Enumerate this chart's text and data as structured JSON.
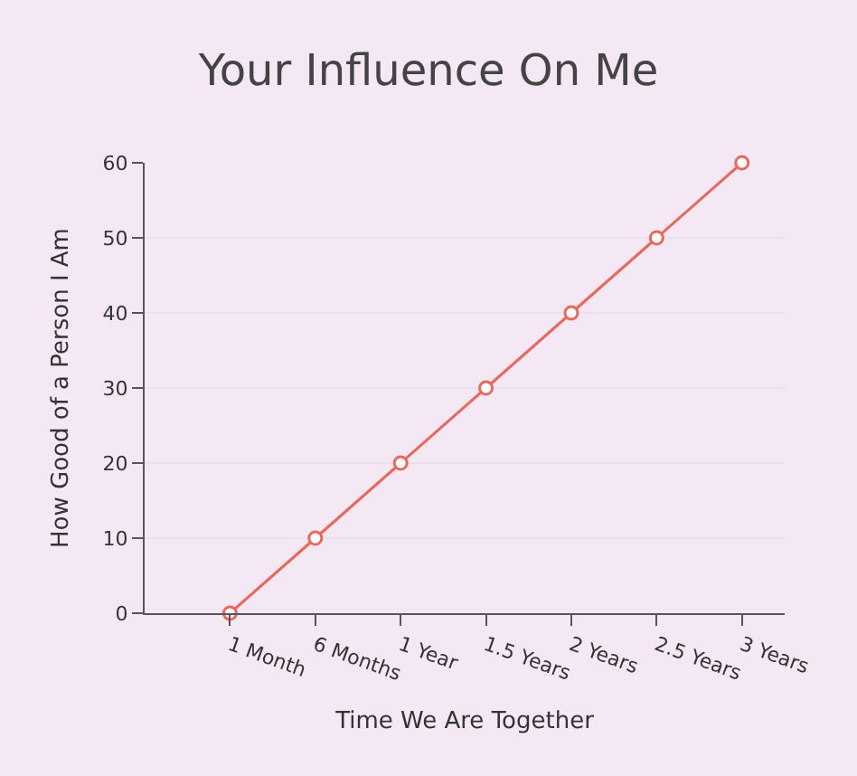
{
  "chart_data": {
    "type": "line",
    "title": "Your Influence On Me",
    "xlabel": "Time We Are Together",
    "ylabel": "How Good of a Person I Am",
    "categories": [
      "1 Month",
      "6 Months",
      "1 Year",
      "1.5 Years",
      "2 Years",
      "2.5 Years",
      "3 Years"
    ],
    "values": [
      0,
      10,
      20,
      30,
      40,
      50,
      60
    ],
    "color": "#e8685a",
    "ylim": [
      0,
      60
    ],
    "yticks": [
      0,
      10,
      20,
      30,
      40,
      50,
      60
    ],
    "grid": "y",
    "marker": "circle",
    "line_style": "solid"
  }
}
